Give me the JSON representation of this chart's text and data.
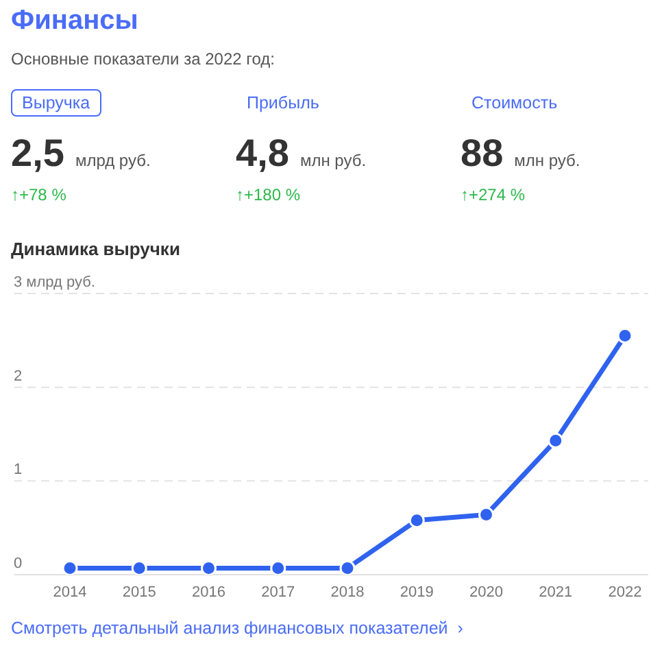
{
  "chart_data": {
    "type": "line",
    "title": "Финансы",
    "subtitle": "Основные показатели за 2022 год:",
    "annotations": [
      "Выручка",
      "Прибыль",
      "Стоимость",
      "2,5",
      "4,8",
      "88",
      "млрд руб.",
      "млн руб.",
      "млн руб.",
      "↑+78 %",
      "↑+180 %",
      "↑+274 %",
      "Динамика выручки",
      "Смотреть детальный анализ финансовых показателей  ›"
    ],
    "categories": [
      "2014",
      "2015",
      "2016",
      "2017",
      "2018",
      "2019",
      "2020",
      "2021",
      "2022"
    ],
    "series": [
      {
        "color": "#2f62ee",
        "values": [
          0.07,
          0.07,
          0.07,
          0.07,
          0.07,
          0.58,
          0.64,
          1.43,
          2.55
        ]
      }
    ],
    "ylim": [
      0,
      3
    ],
    "yticks": [
      0,
      1,
      2,
      {
        "value": 3,
        "label": "3 млрд руб."
      }
    ],
    "grid": "y",
    "marker": "circle",
    "line_style": "solid",
    "legend": false
  }
}
